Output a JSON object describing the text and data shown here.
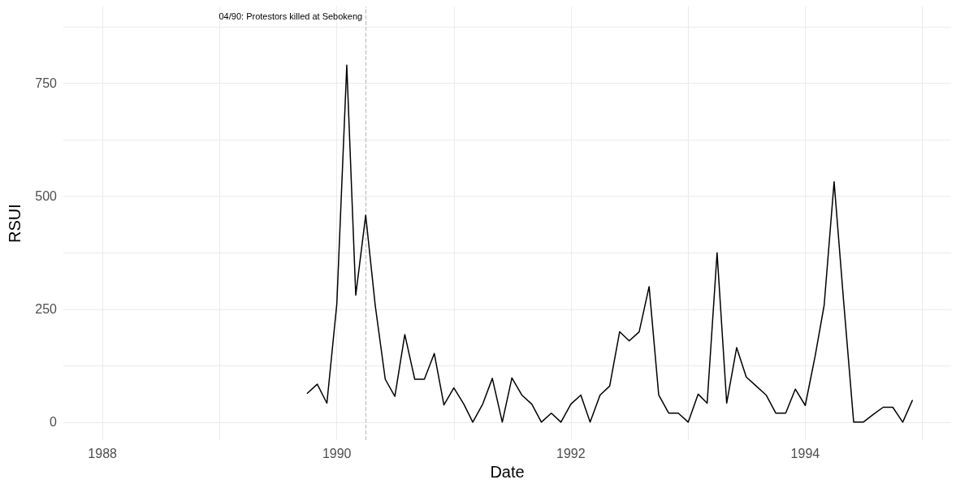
{
  "chart_data": {
    "type": "line",
    "xlabel": "Date",
    "ylabel": "RSUI",
    "x": [
      "1989-10",
      "1989-11",
      "1989-12",
      "1990-01",
      "1990-02",
      "1990-03",
      "1990-04",
      "1990-05",
      "1990-06",
      "1990-07",
      "1990-08",
      "1990-09",
      "1990-10",
      "1990-11",
      "1990-12",
      "1991-01",
      "1991-02",
      "1991-03",
      "1991-04",
      "1991-05",
      "1991-06",
      "1991-07",
      "1991-08",
      "1991-09",
      "1991-10",
      "1991-11",
      "1991-12",
      "1992-01",
      "1992-02",
      "1992-03",
      "1992-04",
      "1992-05",
      "1992-06",
      "1992-07",
      "1992-08",
      "1992-09",
      "1992-10",
      "1992-11",
      "1992-12",
      "1993-01",
      "1993-02",
      "1993-03",
      "1993-04",
      "1993-05",
      "1993-06",
      "1993-07",
      "1993-08",
      "1993-09",
      "1993-10",
      "1993-11",
      "1993-12",
      "1994-01",
      "1994-02",
      "1994-03",
      "1994-04",
      "1994-05",
      "1994-06",
      "1994-07",
      "1994-08",
      "1994-09",
      "1994-10",
      "1994-11",
      "1994-12"
    ],
    "series": [
      {
        "color": "#000000",
        "values": [
          64,
          84,
          42,
          262,
          790,
          281,
          458,
          257,
          95,
          57,
          194,
          95,
          95,
          152,
          38,
          76,
          40,
          0,
          40,
          97,
          0,
          98,
          60,
          40,
          0,
          20,
          0,
          40,
          60,
          0,
          60,
          80,
          200,
          180,
          200,
          300,
          60,
          20,
          20,
          0,
          62,
          42,
          375,
          42,
          165,
          100,
          80,
          60,
          20,
          20,
          73,
          37,
          147,
          259,
          532,
          265,
          0,
          0,
          17,
          33,
          33,
          0,
          48
        ]
      }
    ],
    "xlim": [
      "1987-09",
      "1995-04"
    ],
    "xticks": [
      {
        "value": "1988",
        "label": "1988"
      },
      {
        "value": "1989",
        "label": null
      },
      {
        "value": "1990",
        "label": "1990"
      },
      {
        "value": "1991",
        "label": null
      },
      {
        "value": "1992",
        "label": "1992"
      },
      {
        "value": "1993",
        "label": null
      },
      {
        "value": "1994",
        "label": "1994"
      },
      {
        "value": "1995",
        "label": null
      }
    ],
    "ylim": [
      -40,
      920
    ],
    "yticks": [
      0,
      {
        "value": 125,
        "label": null
      },
      250,
      {
        "value": 375,
        "label": null
      },
      500,
      {
        "value": 625,
        "label": null
      },
      750,
      {
        "value": 875,
        "label": null
      }
    ],
    "ref_lines": [
      {
        "axis": "x",
        "value": "1990-04",
        "label": "04/90: Protestors killed at Sebokeng",
        "color": "#bdbdbd",
        "line_style": "dashed"
      }
    ],
    "grid": true,
    "marker": "none",
    "line_style": "solid"
  }
}
